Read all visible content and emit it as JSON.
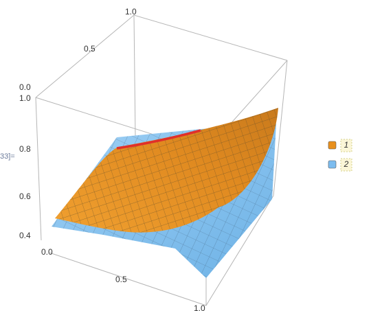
{
  "cell_label": "33]=",
  "axes": {
    "top": [
      "1.0",
      "0.5",
      "0.0"
    ],
    "vertical": [
      "1.0",
      "0.8",
      "0.6",
      "0.4"
    ],
    "bottom": [
      "0.0",
      "0.5",
      "1.0"
    ]
  },
  "legend": [
    {
      "label": "1",
      "color": "#e8901e"
    },
    {
      "label": "2",
      "color": "#7cbcef"
    }
  ]
}
